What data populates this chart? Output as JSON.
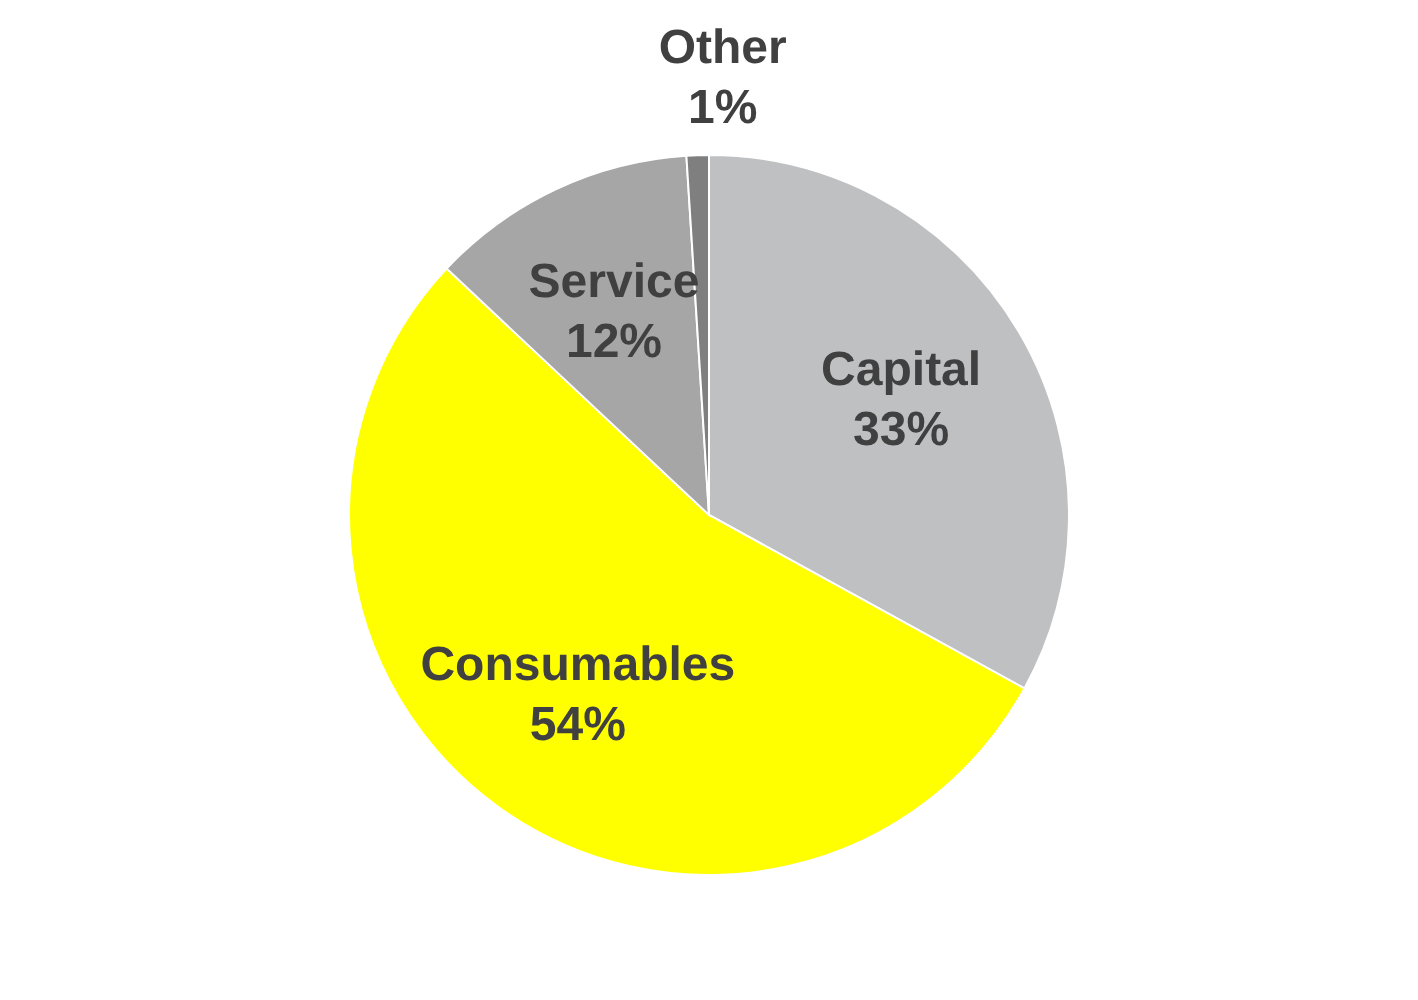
{
  "chart_data": {
    "type": "pie",
    "categories": [
      "Capital",
      "Consumables",
      "Service",
      "Other"
    ],
    "values": [
      33,
      54,
      12,
      1
    ],
    "colors": [
      "#bfc0c2",
      "#ffff00",
      "#a6a6a6",
      "#7f7f7f"
    ],
    "value_labels": [
      "33%",
      "54%",
      "12%",
      "1%"
    ],
    "legend": false
  }
}
